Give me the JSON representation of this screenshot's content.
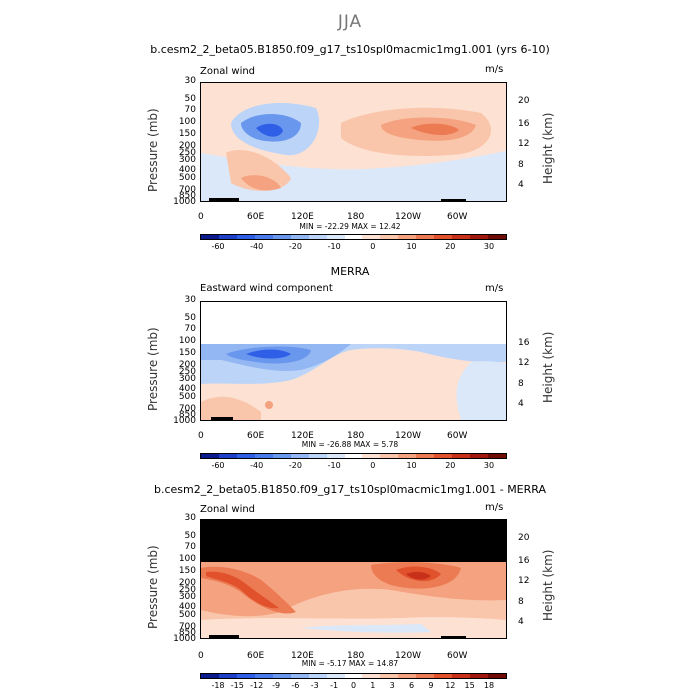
{
  "suptitle": "JJA",
  "panels": [
    {
      "title": "b.cesm2_2_beta05.B1850.f09_g17_ts10spl0macmic1mg1.001 (yrs 6-10)",
      "sublabel": "Zonal wind",
      "units": "m/s",
      "minmax": "MIN = -22.29   MAX =  12.42",
      "cb_labels": [
        "-60",
        "-40",
        "-20",
        "-10",
        "0",
        "10",
        "20",
        "30"
      ],
      "cb_colors": [
        "#0a1a8c",
        "#1e3fc7",
        "#2f5fe6",
        "#4a7bea",
        "#6a97ee",
        "#93b7f2",
        "#bcd4f7",
        "#dbe8fa",
        "#ffffff",
        "#fde2d3",
        "#f9c6ac",
        "#f4a27f",
        "#ec7a52",
        "#e0512c",
        "#c9301a",
        "#a0180d",
        "#700a05"
      ]
    },
    {
      "title": "MERRA",
      "sublabel": "Eastward wind component",
      "units": "m/s",
      "minmax": "MIN = -26.88   MAX =   5.78",
      "cb_labels": [
        "-60",
        "-40",
        "-20",
        "-10",
        "0",
        "10",
        "20",
        "30"
      ],
      "cb_colors": [
        "#0a1a8c",
        "#1e3fc7",
        "#2f5fe6",
        "#4a7bea",
        "#6a97ee",
        "#93b7f2",
        "#bcd4f7",
        "#dbe8fa",
        "#ffffff",
        "#fde2d3",
        "#f9c6ac",
        "#f4a27f",
        "#ec7a52",
        "#e0512c",
        "#c9301a",
        "#a0180d",
        "#700a05"
      ]
    },
    {
      "title": "b.cesm2_2_beta05.B1850.f09_g17_ts10spl0macmic1mg1.001 - MERRA",
      "sublabel": "Zonal wind",
      "units": "m/s",
      "minmax": "MIN =  -5.17   MAX =  14.87",
      "cb_labels": [
        "-18",
        "-15",
        "-12",
        "-9",
        "-6",
        "-3",
        "-1",
        "0",
        "1",
        "3",
        "6",
        "9",
        "12",
        "15",
        "18"
      ],
      "cb_colors": [
        "#0a1a8c",
        "#1e3fc7",
        "#2f5fe6",
        "#4a7bea",
        "#6a97ee",
        "#93b7f2",
        "#bcd4f7",
        "#dbe8fa",
        "#ffffff",
        "#fde2d3",
        "#f9c6ac",
        "#f4a27f",
        "#ec7a52",
        "#e0512c",
        "#c9301a",
        "#a0180d",
        "#700a05"
      ]
    }
  ],
  "axes": {
    "ylabel": "Pressure (mb)",
    "y2label": "Height (km)",
    "yticks": [
      "30",
      "50",
      "70",
      "100",
      "150",
      "200",
      "250",
      "300",
      "400",
      "500",
      "700",
      "850",
      "1000"
    ],
    "y2ticks": [
      "20",
      "16",
      "12",
      "8",
      "4"
    ],
    "xticks": [
      "0",
      "60E",
      "120E",
      "180",
      "120W",
      "60W"
    ]
  },
  "chart_data": {
    "type": "heatmap",
    "title": "JJA",
    "description_units": "m/s",
    "x": [
      "0",
      "60E",
      "120E",
      "180",
      "120W",
      "60W"
    ],
    "y_pressure_mb": [
      30,
      50,
      70,
      100,
      150,
      200,
      250,
      300,
      400,
      500,
      700,
      850,
      1000
    ],
    "panels": [
      {
        "name": "b.cesm2_2_beta05.B1850.f09_g17_ts10spl0macmic1mg1.001 (yrs 6-10)",
        "min": -22.29,
        "max": 12.42
      },
      {
        "name": "MERRA",
        "min": -26.88,
        "max": 5.78
      },
      {
        "name": "b.cesm2_2_beta05.B1850.f09_g17_ts10spl0macmic1mg1.001 - MERRA",
        "min": -5.17,
        "max": 14.87
      }
    ],
    "colorbar_levels_panels_1_2": [
      -60,
      -40,
      -20,
      -10,
      0,
      10,
      20,
      30
    ],
    "colorbar_levels_panel_3": [
      -18,
      -15,
      -12,
      -9,
      -6,
      -3,
      -1,
      0,
      1,
      3,
      6,
      9,
      12,
      15,
      18
    ]
  }
}
